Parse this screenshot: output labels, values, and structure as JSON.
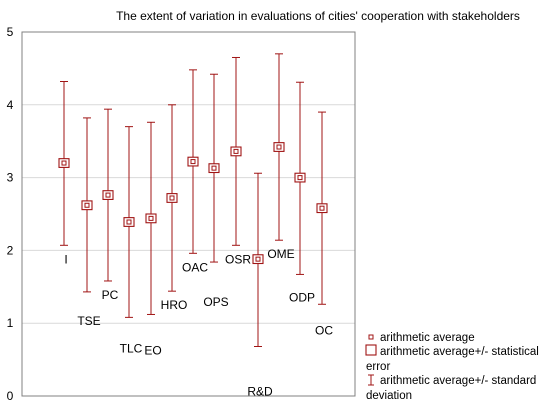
{
  "chart_data": {
    "type": "scatter",
    "title": "The extent of variation in evaluations of cities' cooperation with stakeholders",
    "xlabel": "",
    "ylabel": "",
    "ylim": [
      0,
      5
    ],
    "yticks": [
      "0",
      "1",
      "2",
      "3",
      "4",
      "5"
    ],
    "grid": true,
    "legend_position": "bottom-right",
    "colors": {
      "marker": "#a01414",
      "grid": "#d9d9d9",
      "frame": "#808080"
    },
    "categories": [
      "I",
      "TSE",
      "PC",
      "TLC",
      "EO",
      "HRO",
      "OAC",
      "OPS",
      "OSR",
      "R&D",
      "OME",
      "ODP",
      "OC"
    ],
    "mean": [
      3.2,
      2.62,
      2.76,
      2.39,
      2.44,
      2.72,
      3.22,
      3.13,
      3.36,
      1.88,
      3.42,
      3.0,
      2.58
    ],
    "se_upper": [
      3.26,
      2.68,
      2.82,
      2.45,
      2.5,
      2.78,
      3.28,
      3.19,
      3.42,
      1.94,
      3.48,
      3.06,
      2.64
    ],
    "se_lower": [
      3.14,
      2.56,
      2.7,
      2.33,
      2.38,
      2.66,
      3.16,
      3.07,
      3.3,
      1.82,
      3.36,
      2.94,
      2.52
    ],
    "sd_upper": [
      4.32,
      3.82,
      3.94,
      3.7,
      3.76,
      4.0,
      4.48,
      4.42,
      4.65,
      3.06,
      4.7,
      4.31,
      3.9
    ],
    "sd_lower": [
      2.07,
      1.43,
      1.58,
      1.08,
      1.12,
      1.44,
      1.96,
      1.84,
      2.07,
      0.68,
      2.14,
      1.67,
      1.26
    ],
    "legend": [
      {
        "symbol": "point",
        "label": "arithmetic average"
      },
      {
        "symbol": "box",
        "label_lines": [
          "arithmetic average+/- statistical",
          "error"
        ]
      },
      {
        "symbol": "whisker",
        "label_lines": [
          "arithmetic average+/- standard",
          "deviation"
        ]
      }
    ]
  }
}
